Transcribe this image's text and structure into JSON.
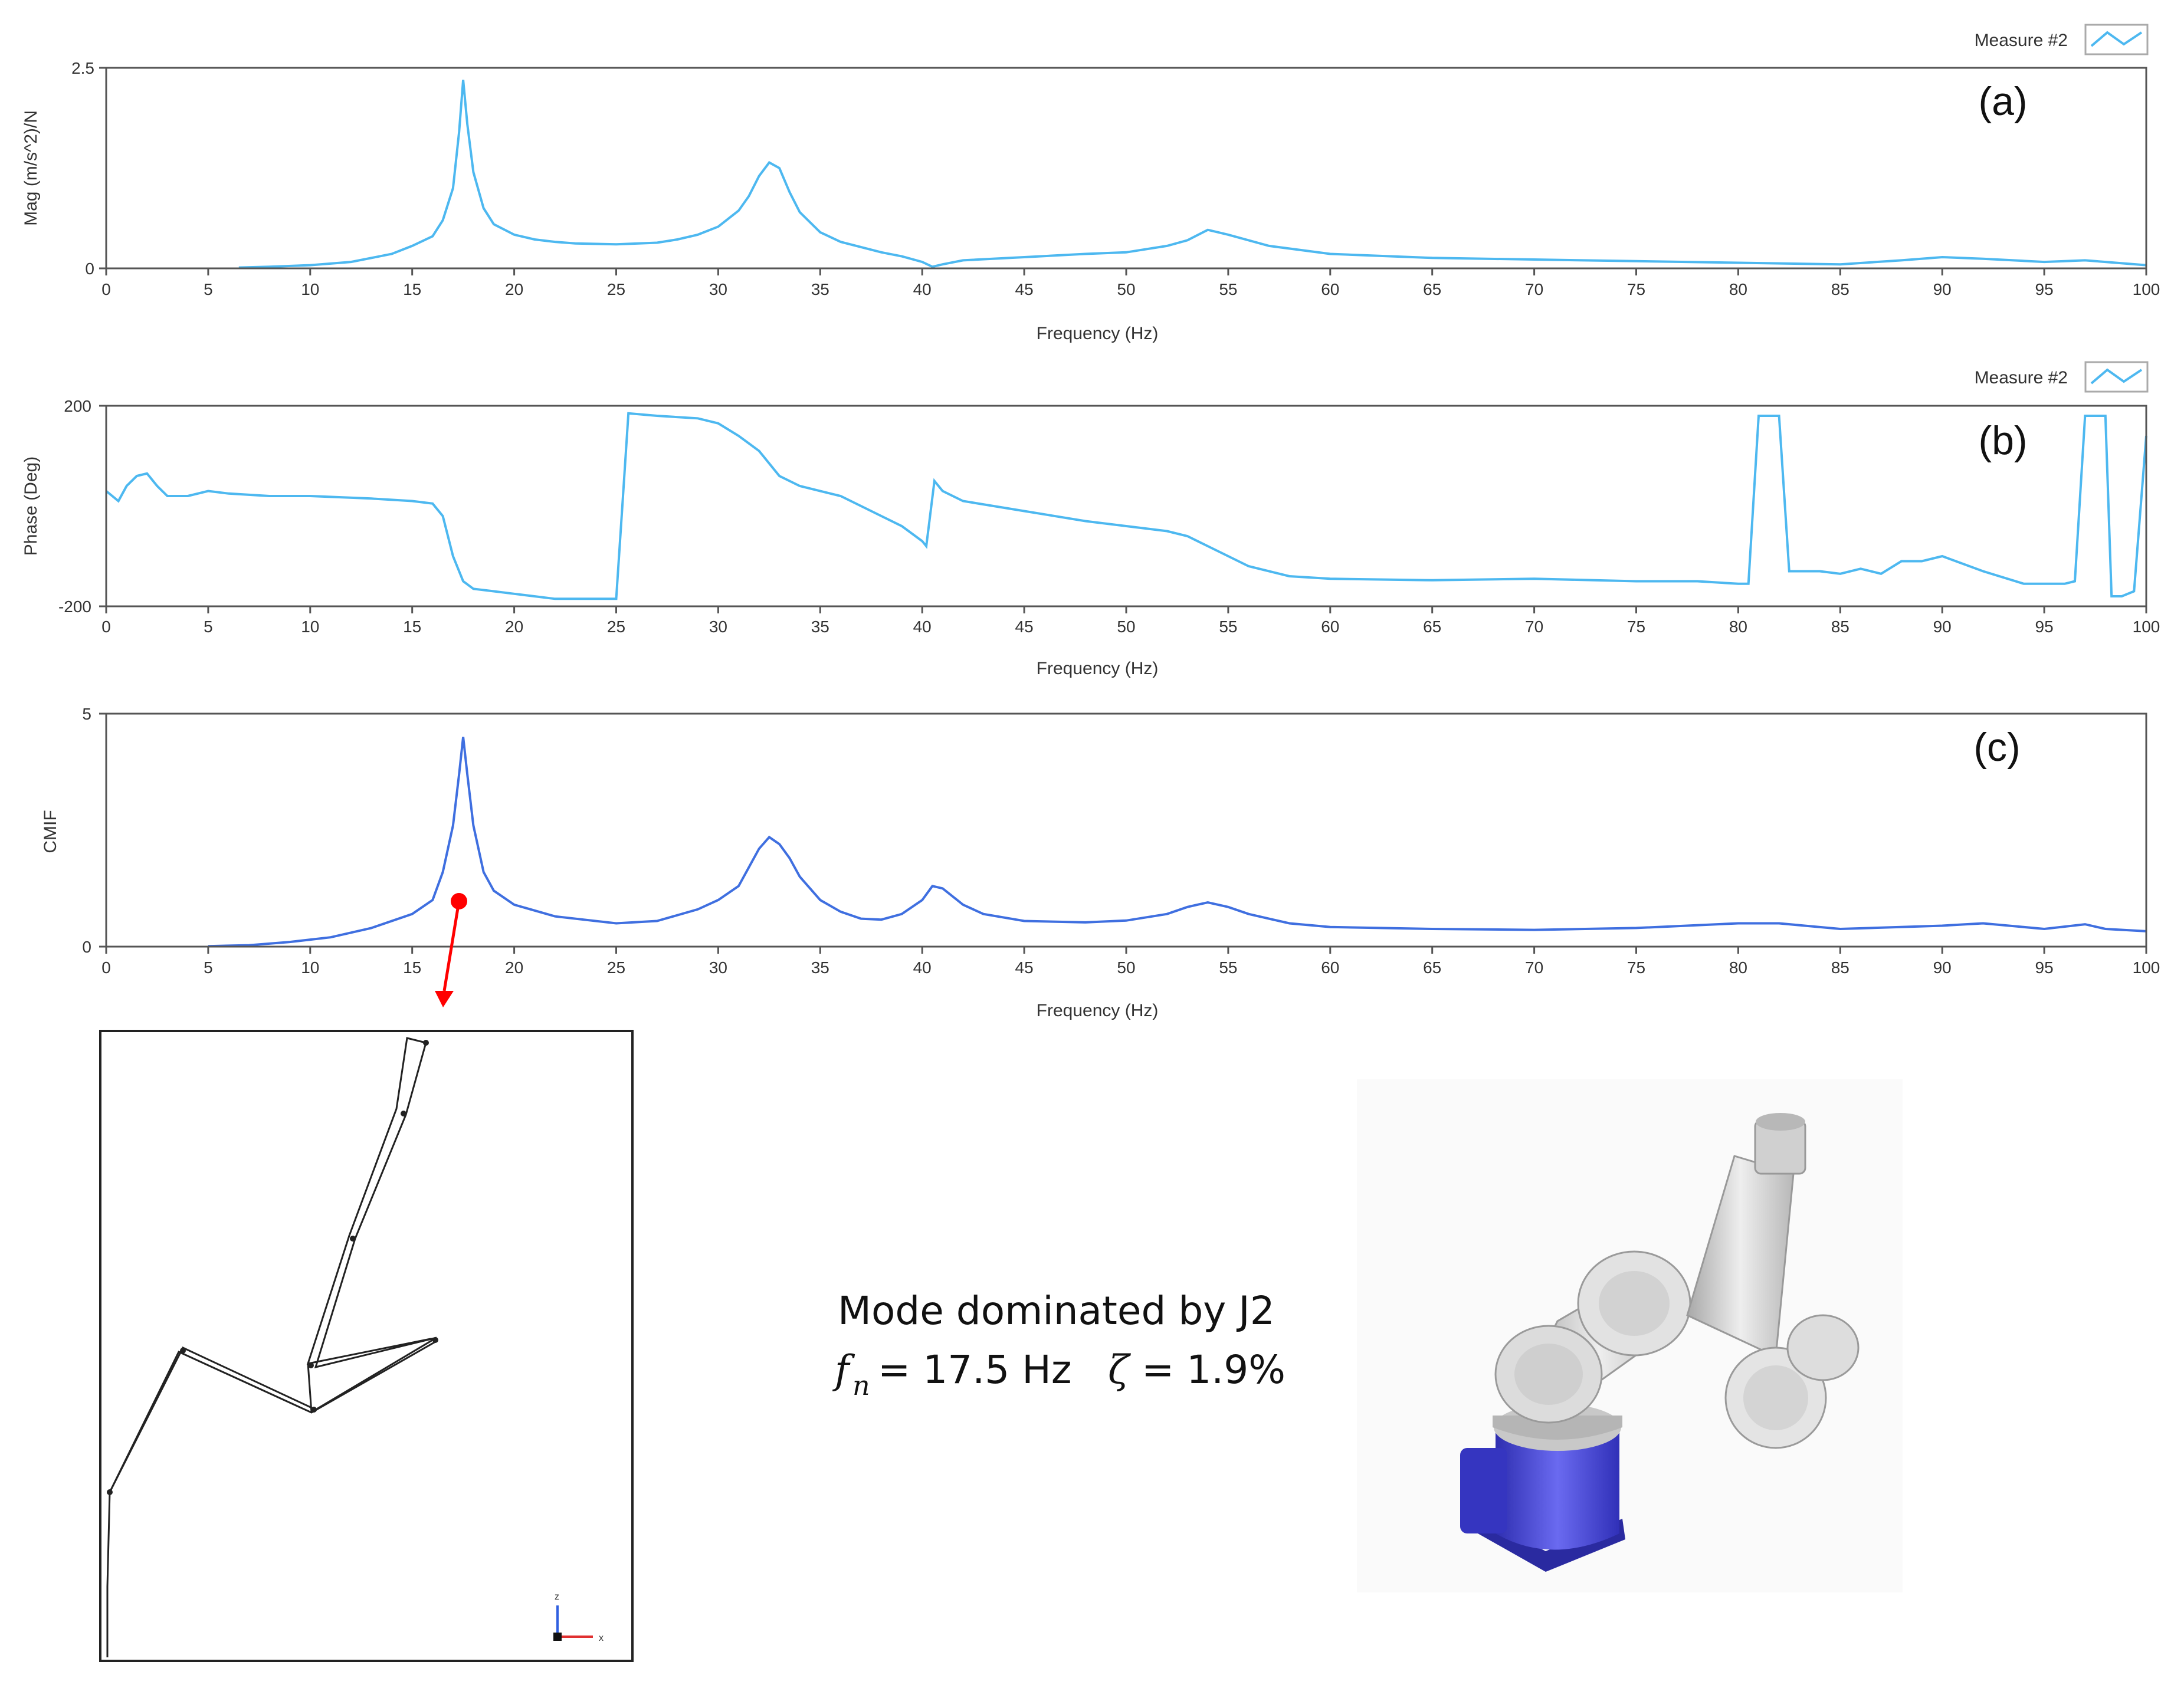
{
  "chart_data": [
    {
      "type": "line",
      "panel_label": "(a)",
      "xlabel": "Frequency (Hz)",
      "ylabel": "Mag  (m/s^2)/N",
      "xlim": [
        0,
        100
      ],
      "ylim": [
        0,
        2.5
      ],
      "x_ticks": [
        "0",
        "5",
        "10",
        "15",
        "20",
        "25",
        "30",
        "35",
        "40",
        "45",
        "50",
        "55",
        "60",
        "65",
        "70",
        "75",
        "80",
        "85",
        "90",
        "95",
        "100"
      ],
      "y_ticks": [
        "0",
        "2.5"
      ],
      "legend": {
        "label": "Measure #2",
        "placement": "top-right"
      },
      "color": "#4db8f0",
      "series": [
        {
          "name": "Measure #2",
          "x": [
            6.5,
            8,
            10,
            12,
            14,
            15,
            16,
            16.5,
            17,
            17.3,
            17.5,
            17.7,
            18,
            18.5,
            19,
            20,
            21,
            22,
            23,
            25,
            27,
            28,
            29,
            30,
            31,
            31.5,
            32,
            32.5,
            33,
            33.5,
            34,
            35,
            36,
            38,
            39,
            40,
            40.5,
            41,
            42,
            45,
            48,
            50,
            52,
            53,
            54,
            55,
            57,
            60,
            65,
            70,
            75,
            80,
            85,
            88,
            90,
            92,
            95,
            97,
            98,
            100
          ],
          "y": [
            0.01,
            0.02,
            0.04,
            0.08,
            0.18,
            0.28,
            0.4,
            0.6,
            1.0,
            1.7,
            2.35,
            1.8,
            1.2,
            0.75,
            0.55,
            0.42,
            0.36,
            0.33,
            0.31,
            0.3,
            0.32,
            0.36,
            0.42,
            0.52,
            0.72,
            0.9,
            1.15,
            1.32,
            1.25,
            0.95,
            0.7,
            0.45,
            0.33,
            0.2,
            0.15,
            0.08,
            0.02,
            0.05,
            0.1,
            0.14,
            0.18,
            0.2,
            0.28,
            0.35,
            0.48,
            0.42,
            0.28,
            0.18,
            0.13,
            0.11,
            0.09,
            0.07,
            0.05,
            0.1,
            0.14,
            0.12,
            0.08,
            0.1,
            0.08,
            0.04
          ]
        }
      ]
    },
    {
      "type": "line",
      "panel_label": "(b)",
      "xlabel": "Frequency (Hz)",
      "ylabel": "Phase (Deg)",
      "xlim": [
        0,
        100
      ],
      "ylim": [
        -200,
        200
      ],
      "x_ticks": [
        "0",
        "5",
        "10",
        "15",
        "20",
        "25",
        "30",
        "35",
        "40",
        "45",
        "50",
        "55",
        "60",
        "65",
        "70",
        "75",
        "80",
        "85",
        "90",
        "95",
        "100"
      ],
      "y_ticks": [
        "-200",
        "200"
      ],
      "legend": {
        "label": "Measure #2",
        "placement": "top-right"
      },
      "color": "#4db8f0",
      "series": [
        {
          "name": "Measure #2",
          "x": [
            0,
            0.6,
            1,
            1.5,
            2,
            2.5,
            3,
            4,
            5,
            6,
            8,
            10,
            13,
            15,
            16,
            16.5,
            17,
            17.5,
            18,
            19,
            20,
            22,
            23.5,
            25,
            25.3,
            25.6,
            27,
            29,
            30,
            31,
            32,
            33,
            34,
            36,
            37,
            38,
            39,
            40,
            40.2,
            40.6,
            41,
            42,
            45,
            48,
            50,
            52,
            53,
            54,
            55,
            56,
            58,
            60,
            65,
            70,
            75,
            78,
            80,
            80.5,
            81,
            82,
            82.5,
            84,
            85,
            86,
            87,
            88,
            89,
            90,
            92,
            94,
            95,
            96,
            96.5,
            97,
            98,
            98.3,
            98.8,
            99.4,
            100
          ],
          "y": [
            30,
            10,
            40,
            60,
            65,
            40,
            20,
            20,
            30,
            25,
            20,
            20,
            15,
            10,
            5,
            -20,
            -100,
            -150,
            -165,
            -170,
            -175,
            -185,
            -185,
            -185,
            0,
            185,
            180,
            175,
            165,
            140,
            110,
            60,
            40,
            20,
            0,
            -20,
            -40,
            -70,
            -80,
            50,
            30,
            10,
            -10,
            -30,
            -40,
            -50,
            -60,
            -80,
            -100,
            -120,
            -140,
            -145,
            -148,
            -145,
            -150,
            -150,
            -155,
            -155,
            180,
            180,
            -130,
            -130,
            -135,
            -125,
            -135,
            -110,
            -110,
            -100,
            -130,
            -155,
            -155,
            -155,
            -150,
            180,
            180,
            -180,
            -180,
            -170,
            140
          ]
        }
      ]
    },
    {
      "type": "line",
      "panel_label": "(c)",
      "xlabel": "Frequency (Hz)",
      "ylabel": "CMIF",
      "xlim": [
        0,
        100
      ],
      "ylim": [
        0,
        5
      ],
      "x_ticks": [
        "0",
        "5",
        "10",
        "15",
        "20",
        "25",
        "30",
        "35",
        "40",
        "45",
        "50",
        "55",
        "60",
        "65",
        "70",
        "75",
        "80",
        "85",
        "90",
        "95",
        "100"
      ],
      "y_ticks": [
        "0",
        "5"
      ],
      "color": "#3f6fe0",
      "series": [
        {
          "x": [
            5,
            7,
            9,
            11,
            13,
            15,
            16,
            16.5,
            17,
            17.3,
            17.5,
            17.7,
            18,
            18.5,
            19,
            20,
            22,
            25,
            27,
            29,
            30,
            31,
            31.5,
            32,
            32.5,
            33,
            33.5,
            34,
            35,
            36,
            37,
            38,
            39,
            40,
            40.5,
            41,
            42,
            43,
            45,
            48,
            50,
            52,
            53,
            54,
            55,
            56,
            58,
            60,
            65,
            70,
            75,
            80,
            82,
            85,
            90,
            92,
            95,
            97,
            98,
            100
          ],
          "y": [
            0.01,
            0.03,
            0.1,
            0.2,
            0.4,
            0.7,
            1.0,
            1.6,
            2.6,
            3.7,
            4.5,
            3.7,
            2.6,
            1.6,
            1.2,
            0.9,
            0.65,
            0.5,
            0.55,
            0.8,
            1.0,
            1.3,
            1.7,
            2.1,
            2.35,
            2.2,
            1.9,
            1.5,
            1.0,
            0.75,
            0.6,
            0.58,
            0.7,
            1.0,
            1.3,
            1.25,
            0.9,
            0.7,
            0.55,
            0.52,
            0.56,
            0.7,
            0.85,
            0.95,
            0.85,
            0.7,
            0.5,
            0.42,
            0.38,
            0.36,
            0.4,
            0.5,
            0.5,
            0.38,
            0.45,
            0.5,
            0.38,
            0.48,
            0.38,
            0.33
          ]
        }
      ]
    }
  ],
  "mode_text": {
    "line1": "Mode dominated by J2",
    "fn_symbol": "f",
    "fn_subscript": "n",
    "fn_value": "= 17.5 Hz",
    "zeta_symbol": "ζ",
    "zeta_value": "= 1.9%"
  },
  "mode_shape_axis": {
    "z": "z",
    "x": "x"
  },
  "colors": {
    "pointer": "#ff0000",
    "robot_base": "#4a4adc",
    "robot_arm": "#d9d9d9"
  }
}
